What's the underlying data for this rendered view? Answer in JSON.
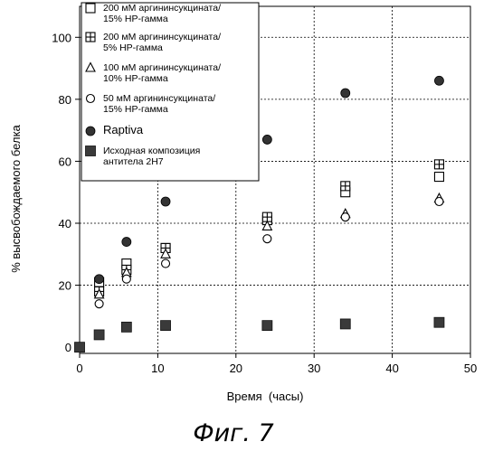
{
  "figure_caption": "Фиг. 7",
  "chart_data": {
    "type": "scatter",
    "title": "",
    "xlabel": "Время  (часы)",
    "ylabel": "% высвобождаемого белка",
    "xlim": [
      0,
      50
    ],
    "ylim": [
      -2,
      110
    ],
    "xticks": [
      0,
      10,
      20,
      30,
      40,
      50
    ],
    "yticks": [
      0,
      20,
      40,
      60,
      80,
      100
    ],
    "grid": "horizontal dashed at y ticks; vertical dashed at x=10,20,30,40",
    "legend_position": "top-left",
    "series": [
      {
        "name": "200 мМ аргининсукцината/ 15% HP-гамма",
        "name_lines": [
          "200 мМ аргининсукцината/",
          "15% HP-гамма"
        ],
        "marker": "open-square",
        "points": [
          [
            0,
            0
          ],
          [
            2.5,
            21
          ],
          [
            6,
            27
          ],
          [
            11,
            32
          ],
          [
            24,
            41
          ],
          [
            34,
            50
          ],
          [
            46,
            55
          ]
        ]
      },
      {
        "name": "200 мМ аргининсукцината/ 5% HP-гамма",
        "name_lines": [
          "200 мМ аргининсукцината/",
          "5% HP-гамма"
        ],
        "marker": "square-plus",
        "points": [
          [
            0,
            0
          ],
          [
            2.5,
            18
          ],
          [
            6,
            25
          ],
          [
            11,
            32
          ],
          [
            24,
            42
          ],
          [
            34,
            52
          ],
          [
            46,
            59
          ]
        ]
      },
      {
        "name": "100 мМ аргининсукцината/ 10% HP-гамма",
        "name_lines": [
          "100 мМ аргининсукцината/",
          "10% HP-гамма"
        ],
        "marker": "open-triangle",
        "points": [
          [
            0,
            0
          ],
          [
            2.5,
            17
          ],
          [
            6,
            24
          ],
          [
            11,
            30
          ],
          [
            24,
            39
          ],
          [
            34,
            43
          ],
          [
            46,
            48
          ]
        ]
      },
      {
        "name": "50 мМ аргининсукцината/ 15% HP-гамма",
        "name_lines": [
          "50 мМ аргининсукцината/",
          "15% HP-гамма"
        ],
        "marker": "open-circle",
        "points": [
          [
            0,
            0
          ],
          [
            2.5,
            14
          ],
          [
            6,
            22
          ],
          [
            11,
            27
          ],
          [
            24,
            35
          ],
          [
            34,
            42
          ],
          [
            46,
            47
          ]
        ]
      },
      {
        "name": "Raptiva",
        "name_lines": [
          "Raptiva"
        ],
        "marker": "filled-circle",
        "points": [
          [
            0,
            0
          ],
          [
            2.5,
            22
          ],
          [
            6,
            34
          ],
          [
            11,
            47
          ],
          [
            24,
            67
          ],
          [
            34,
            82
          ],
          [
            46,
            86
          ]
        ]
      },
      {
        "name": "Исходная композиция антитела 2H7",
        "name_lines": [
          "Исходная композиция",
          "антитела  2H7"
        ],
        "marker": "filled-square-dark",
        "points": [
          [
            0,
            0
          ],
          [
            2.5,
            4
          ],
          [
            6,
            6.5
          ],
          [
            11,
            7
          ],
          [
            24,
            7
          ],
          [
            34,
            7.5
          ],
          [
            46,
            8
          ]
        ]
      }
    ]
  }
}
